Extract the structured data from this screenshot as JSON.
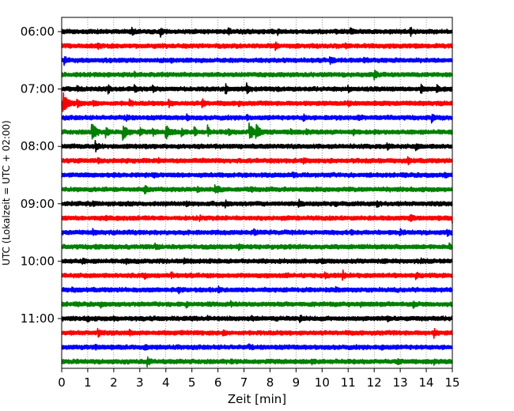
{
  "chart_data": {
    "type": "line",
    "title": "",
    "xlabel": "Zeit  [min]",
    "ylabel": "UTC (Lokalzeit = UTC + 02:00)",
    "xlim": [
      0,
      15
    ],
    "x_ticks": [
      0,
      1,
      2,
      3,
      4,
      5,
      6,
      7,
      8,
      9,
      10,
      11,
      12,
      13,
      14,
      15
    ],
    "x_tick_labels": [
      "0",
      "1",
      "2",
      "3",
      "4",
      "5",
      "6",
      "7",
      "8",
      "9",
      "10",
      "11",
      "12",
      "13",
      "14",
      "15"
    ],
    "y_ticks": [
      "06:00",
      "07:00",
      "08:00",
      "09:00",
      "10:00",
      "11:00"
    ],
    "y_range": [
      "06:00",
      "12:00"
    ],
    "trace_interval_minutes": 15,
    "grid": "vertical dotted at each minute",
    "color_cycle": [
      "#000000",
      "#ff0000",
      "#0000ff",
      "#008000"
    ],
    "traces": [
      {
        "start": "06:00",
        "color": "#000000",
        "events": [
          [
            2.7,
            0.5
          ],
          [
            3.8,
            0.7
          ],
          [
            6.4,
            0.4
          ],
          [
            8.3,
            0.4
          ],
          [
            11.1,
            0.5
          ],
          [
            13.4,
            0.6
          ]
        ]
      },
      {
        "start": "06:15",
        "color": "#ff0000",
        "events": [
          [
            1.4,
            0.3
          ],
          [
            8.2,
            0.7
          ],
          [
            10.9,
            0.3
          ]
        ]
      },
      {
        "start": "06:30",
        "color": "#0000ff",
        "events": [
          [
            0.1,
            0.5
          ],
          [
            4.2,
            0.3
          ],
          [
            10.3,
            0.6
          ],
          [
            11.6,
            0.3
          ]
        ]
      },
      {
        "start": "06:45",
        "color": "#008000",
        "events": [
          [
            2.8,
            0.3
          ],
          [
            12.0,
            0.8
          ]
        ]
      },
      {
        "start": "07:00",
        "color": "#000000",
        "events": [
          [
            0.6,
            0.4
          ],
          [
            1.8,
            0.6
          ],
          [
            2.8,
            0.6
          ],
          [
            3.5,
            0.5
          ],
          [
            6.3,
            0.9
          ],
          [
            7.1,
            0.8
          ],
          [
            11.0,
            0.4
          ],
          [
            13.8,
            0.7
          ],
          [
            14.4,
            0.6
          ]
        ]
      },
      {
        "start": "07:15",
        "color": "#ff0000",
        "events": [
          [
            0.05,
            1.9
          ],
          [
            0.6,
            0.7
          ],
          [
            1.2,
            0.5
          ],
          [
            2.6,
            0.5
          ],
          [
            4.1,
            0.7
          ],
          [
            5.4,
            0.8
          ],
          [
            6.8,
            0.4
          ],
          [
            11.0,
            0.3
          ]
        ]
      },
      {
        "start": "07:30",
        "color": "#0000ff",
        "events": [
          [
            2.5,
            0.4
          ],
          [
            4.8,
            0.3
          ],
          [
            7.1,
            0.4
          ],
          [
            9.3,
            0.4
          ],
          [
            11.4,
            0.3
          ],
          [
            14.2,
            0.8
          ]
        ]
      },
      {
        "start": "07:45",
        "color": "#008000",
        "events": [
          [
            1.15,
            1.8
          ],
          [
            1.7,
            0.9
          ],
          [
            2.35,
            1.4
          ],
          [
            3.0,
            0.6
          ],
          [
            3.5,
            0.5
          ],
          [
            4.0,
            1.1
          ],
          [
            4.6,
            0.8
          ],
          [
            5.1,
            0.7
          ],
          [
            5.6,
            0.9
          ],
          [
            6.4,
            0.6
          ],
          [
            7.2,
            1.6
          ],
          [
            7.45,
            1.2
          ],
          [
            8.8,
            0.4
          ],
          [
            9.4,
            0.4
          ],
          [
            11.2,
            0.4
          ],
          [
            12.0,
            0.3
          ]
        ]
      },
      {
        "start": "08:00",
        "color": "#000000",
        "events": [
          [
            1.3,
            0.7
          ],
          [
            12.5,
            0.6
          ],
          [
            13.6,
            0.5
          ]
        ]
      },
      {
        "start": "08:15",
        "color": "#ff0000",
        "events": [
          [
            1.4,
            0.4
          ],
          [
            3.7,
            0.3
          ],
          [
            9.3,
            0.3
          ],
          [
            13.3,
            0.5
          ]
        ]
      },
      {
        "start": "08:30",
        "color": "#0000ff",
        "events": [
          [
            3.5,
            0.3
          ],
          [
            8.9,
            0.3
          ],
          [
            14.7,
            0.3
          ]
        ]
      },
      {
        "start": "08:45",
        "color": "#008000",
        "events": [
          [
            3.2,
            0.5
          ],
          [
            5.2,
            0.4
          ],
          [
            5.9,
            0.5
          ],
          [
            6.0,
            0.4
          ],
          [
            7.3,
            0.4
          ]
        ]
      },
      {
        "start": "09:00",
        "color": "#000000",
        "events": [
          [
            1.2,
            0.3
          ],
          [
            4.8,
            0.3
          ],
          [
            6.3,
            0.4
          ],
          [
            9.1,
            0.5
          ],
          [
            10.5,
            0.3
          ],
          [
            12.1,
            0.4
          ]
        ]
      },
      {
        "start": "09:15",
        "color": "#ff0000",
        "events": [
          [
            1.7,
            0.3
          ],
          [
            5.3,
            0.3
          ],
          [
            13.4,
            0.5
          ],
          [
            15.0,
            0.6
          ]
        ]
      },
      {
        "start": "09:30",
        "color": "#0000ff",
        "events": [
          [
            1.2,
            0.3
          ],
          [
            7.4,
            0.5
          ],
          [
            11.1,
            0.3
          ],
          [
            13.0,
            0.3
          ],
          [
            14.8,
            0.5
          ]
        ]
      },
      {
        "start": "09:45",
        "color": "#008000",
        "events": [
          [
            1.3,
            0.3
          ],
          [
            3.6,
            0.4
          ],
          [
            6.8,
            0.3
          ],
          [
            14.9,
            0.3
          ]
        ]
      },
      {
        "start": "10:00",
        "color": "#000000",
        "events": [
          [
            0.8,
            0.3
          ],
          [
            2.5,
            0.3
          ],
          [
            4.7,
            0.4
          ],
          [
            10.0,
            0.3
          ],
          [
            12.4,
            0.3
          ],
          [
            13.8,
            0.3
          ]
        ]
      },
      {
        "start": "10:15",
        "color": "#ff0000",
        "events": [
          [
            3.2,
            0.3
          ],
          [
            4.2,
            0.4
          ],
          [
            8.6,
            0.3
          ],
          [
            10.1,
            0.5
          ],
          [
            10.8,
            0.6
          ],
          [
            13.6,
            0.4
          ]
        ]
      },
      {
        "start": "10:30",
        "color": "#0000ff",
        "events": [
          [
            0.4,
            0.3
          ],
          [
            4.5,
            0.3
          ],
          [
            6.0,
            0.4
          ],
          [
            10.5,
            0.3
          ]
        ]
      },
      {
        "start": "10:45",
        "color": "#008000",
        "events": [
          [
            1.5,
            0.3
          ],
          [
            4.8,
            0.4
          ],
          [
            6.5,
            0.3
          ],
          [
            11.5,
            0.3
          ],
          [
            13.5,
            0.4
          ]
        ]
      },
      {
        "start": "11:00",
        "color": "#000000",
        "events": [
          [
            1.0,
            0.4
          ],
          [
            2.0,
            0.3
          ],
          [
            5.6,
            0.3
          ],
          [
            7.3,
            0.3
          ],
          [
            9.15,
            0.6
          ],
          [
            12.5,
            0.3
          ]
        ]
      },
      {
        "start": "11:15",
        "color": "#ff0000",
        "events": [
          [
            1.4,
            0.6
          ],
          [
            2.6,
            0.3
          ],
          [
            6.2,
            0.3
          ],
          [
            14.3,
            0.6
          ]
        ]
      },
      {
        "start": "11:30",
        "color": "#0000ff",
        "events": [
          [
            1.3,
            0.3
          ],
          [
            3.2,
            0.3
          ],
          [
            7.2,
            0.3
          ],
          [
            12.3,
            0.3
          ]
        ]
      },
      {
        "start": "11:45",
        "color": "#008000",
        "events": [
          [
            3.3,
            0.6
          ],
          [
            6.5,
            0.3
          ],
          [
            9.6,
            0.3
          ],
          [
            12.9,
            0.3
          ],
          [
            14.3,
            0.3
          ]
        ]
      }
    ]
  }
}
